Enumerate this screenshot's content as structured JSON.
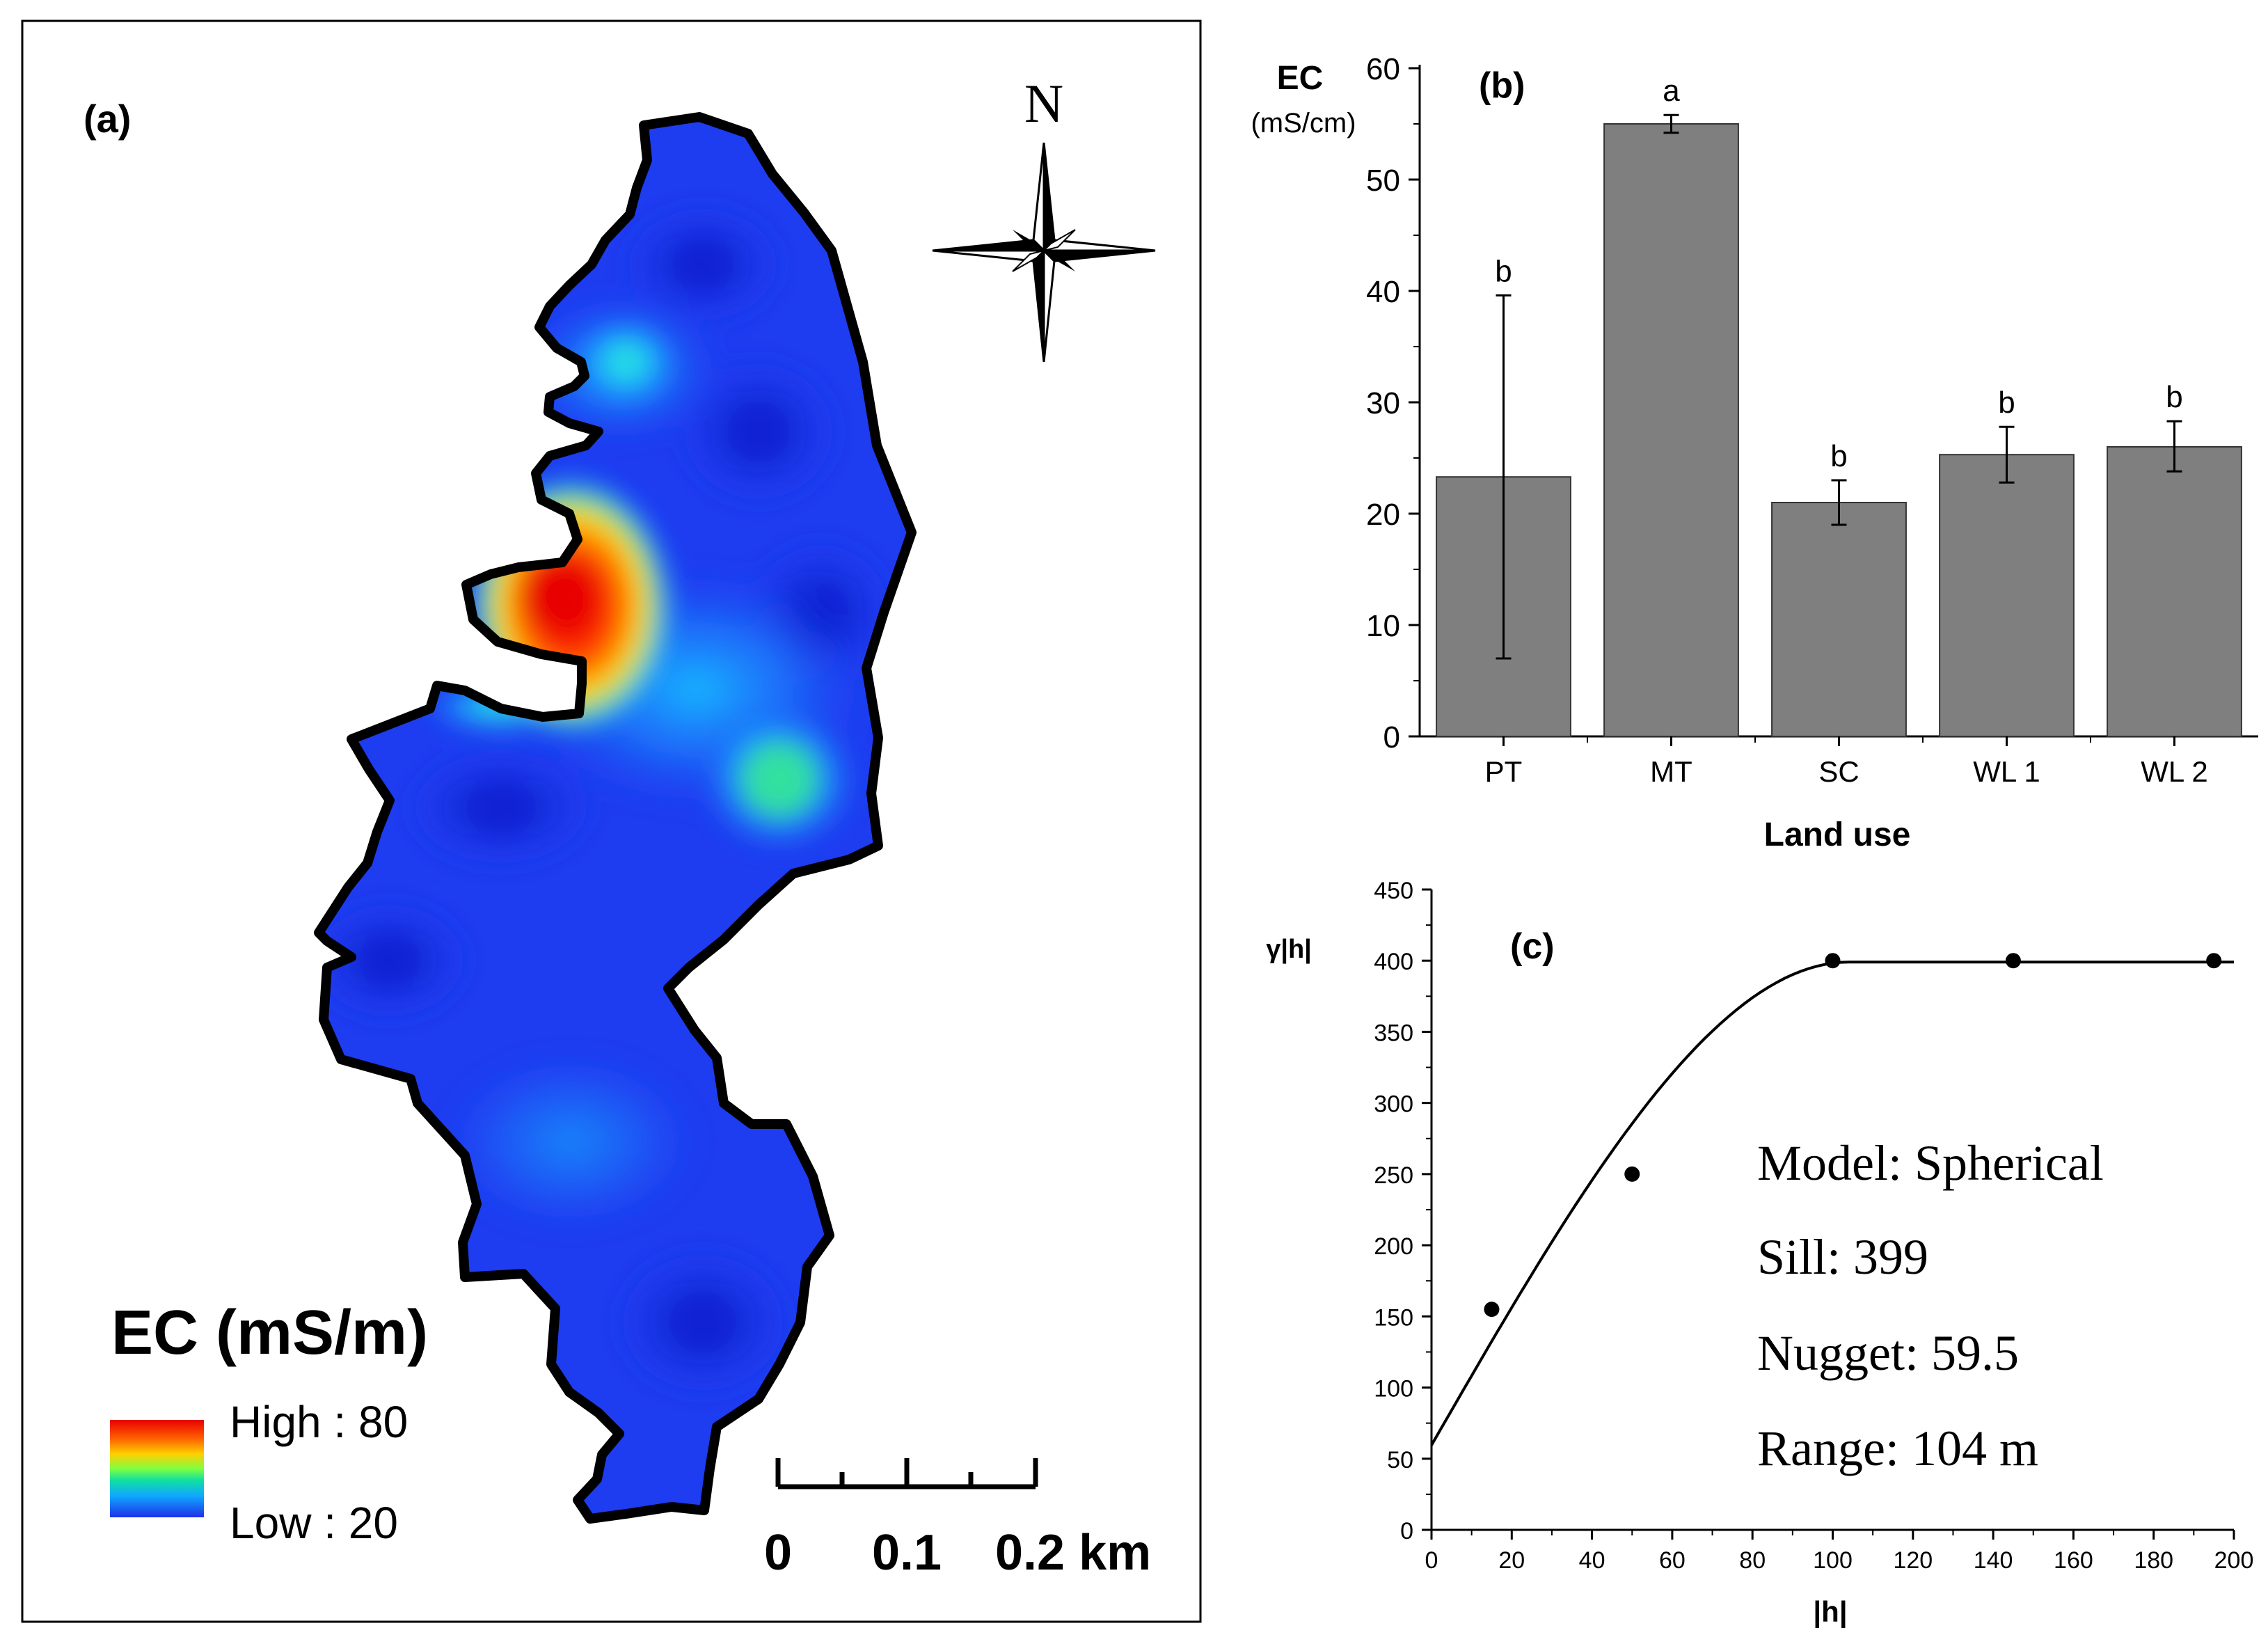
{
  "colors": {
    "bar_fill": "#7f7f7f",
    "map_low": "#1e3cf0",
    "map_high": "#e80000",
    "outline": "#000000"
  },
  "panel_a": {
    "label": "(a)",
    "north": "N",
    "legend_title": "EC (mS/m)",
    "legend_high": "High : 80",
    "legend_low": "Low : 20",
    "scale_labels": [
      "0",
      "0.1",
      "0.2 km"
    ]
  },
  "chart_data": [
    {
      "id": "b",
      "type": "bar",
      "panel_label": "(b)",
      "title": "",
      "ylabel": "EC",
      "ylabel_unit": "(mS/cm)",
      "xlabel": "Land use",
      "categories": [
        "PT",
        "MT",
        "SC",
        "WL 1",
        "WL 2"
      ],
      "values": [
        23.3,
        55.0,
        21.0,
        25.3,
        26.0
      ],
      "error_low": [
        7.0,
        54.2,
        19.0,
        22.8,
        23.8
      ],
      "error_high": [
        39.6,
        55.8,
        23.0,
        27.8,
        28.3
      ],
      "letters": [
        "b",
        "a",
        "b",
        "b",
        "b"
      ],
      "ylim": [
        0,
        60
      ],
      "yticks": [
        0,
        10,
        20,
        30,
        40,
        50,
        60
      ],
      "grid": false
    },
    {
      "id": "c",
      "type": "scatter",
      "panel_label": "(c)",
      "title": "",
      "ylabel": "γ|h|",
      "xlabel": "|h|",
      "x": [
        15,
        50,
        100,
        145,
        195
      ],
      "y": [
        155,
        250,
        400,
        400,
        400
      ],
      "fit": {
        "model": "spherical",
        "nugget": 59.5,
        "sill": 399,
        "range": 104,
        "x_max": 200
      },
      "xlim": [
        0,
        200
      ],
      "ylim": [
        0,
        450
      ],
      "xticks": [
        0,
        20,
        40,
        60,
        80,
        100,
        120,
        140,
        160,
        180,
        200
      ],
      "yticks": [
        0,
        50,
        100,
        150,
        200,
        250,
        300,
        350,
        400,
        450
      ],
      "annotations": [
        "Model: Spherical",
        "Sill: 399",
        "Nugget: 59.5",
        "Range: 104 m"
      ],
      "grid": false
    }
  ]
}
